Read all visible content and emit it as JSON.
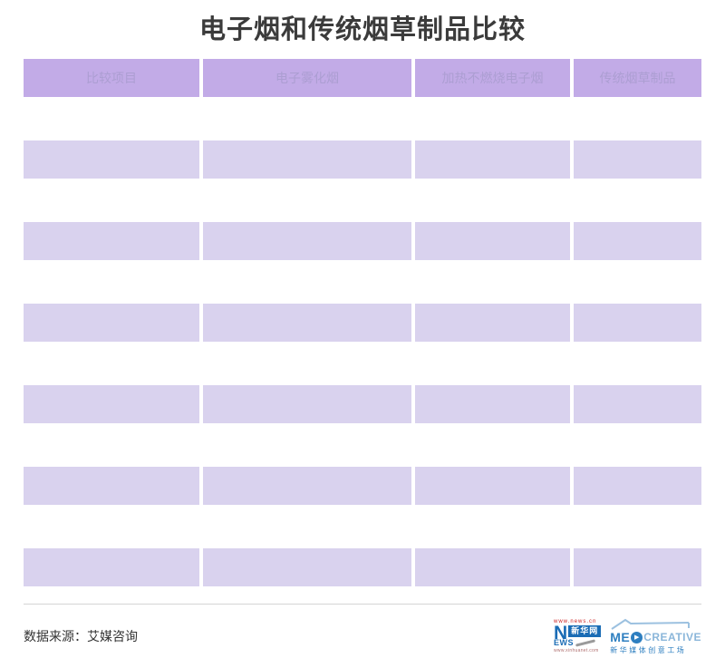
{
  "title": "电子烟和传统烟草制品比较",
  "table": {
    "headers": [
      "比较项目",
      "电子雾化烟",
      "加热不燃烧电子烟",
      "传统烟草制品"
    ],
    "rows": [
      [
        "",
        "",
        "",
        ""
      ],
      [
        "",
        "",
        "",
        ""
      ],
      [
        "",
        "",
        "",
        ""
      ],
      [
        "",
        "",
        "",
        ""
      ],
      [
        "",
        "",
        "",
        ""
      ],
      [
        "",
        "",
        "",
        ""
      ]
    ]
  },
  "chart_data": {
    "type": "table",
    "title": "电子烟和传统烟草制品比较",
    "columns": [
      "比较项目",
      "电子雾化烟",
      "加热不燃烧电子烟",
      "传统烟草制品"
    ],
    "rows": [
      [
        "",
        "",
        "",
        ""
      ],
      [
        "",
        "",
        "",
        ""
      ],
      [
        "",
        "",
        "",
        ""
      ],
      [
        "",
        "",
        "",
        ""
      ],
      [
        "",
        "",
        "",
        ""
      ],
      [
        "",
        "",
        "",
        ""
      ]
    ]
  },
  "footer": {
    "source": "数据来源：艾媒咨询"
  },
  "logos": {
    "xinhua": {
      "url_top": "www.news.cn",
      "n_letter": "N",
      "name": "新华网",
      "news_suffix": "EWS",
      "url_bottom": "www.xinhuanet.com"
    },
    "medcreative": {
      "brand_left": "ME",
      "play_icon": "▶",
      "brand_right": "CREATIVE",
      "subtitle": "新华媒体创意工场"
    }
  },
  "colors": {
    "header_bg": "#c2abe7",
    "header_text": "#ac9ed2",
    "row_bg": "#d9d2ee",
    "title_text": "#3b3b3b",
    "source_text": "#333333",
    "divider": "#d5d5d5",
    "xinhua_blue": "#1a6cb5",
    "xinhua_red": "#cc2222",
    "medcreative_blue": "#2e7fc0",
    "medcreative_light_blue": "#8ab6da"
  }
}
